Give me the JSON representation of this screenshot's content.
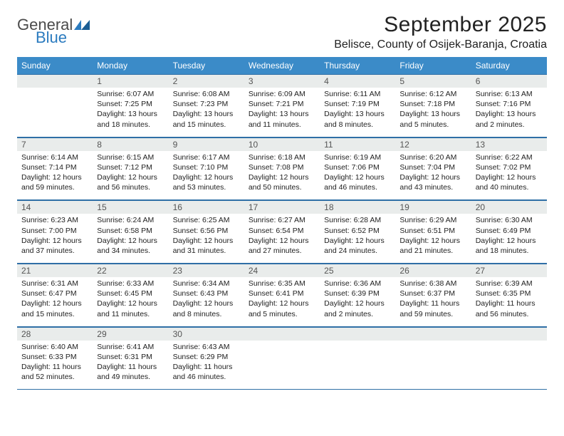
{
  "logo": {
    "word1": "General",
    "word2": "Blue"
  },
  "title": "September 2025",
  "location": "Belisce, County of Osijek-Baranja, Croatia",
  "colors": {
    "header_bg": "#3b8bc8",
    "header_text": "#ffffff",
    "daynum_bg": "#e9eceb",
    "rule": "#2f6fa6",
    "logo_gray": "#4a4a4a",
    "logo_blue": "#2b7bbf"
  },
  "dow": [
    "Sunday",
    "Monday",
    "Tuesday",
    "Wednesday",
    "Thursday",
    "Friday",
    "Saturday"
  ],
  "weeks": [
    {
      "nums": [
        "",
        "1",
        "2",
        "3",
        "4",
        "5",
        "6"
      ],
      "cells": [
        {
          "sunrise": "",
          "sunset": "",
          "daylight": ""
        },
        {
          "sunrise": "Sunrise: 6:07 AM",
          "sunset": "Sunset: 7:25 PM",
          "daylight": "Daylight: 13 hours and 18 minutes."
        },
        {
          "sunrise": "Sunrise: 6:08 AM",
          "sunset": "Sunset: 7:23 PM",
          "daylight": "Daylight: 13 hours and 15 minutes."
        },
        {
          "sunrise": "Sunrise: 6:09 AM",
          "sunset": "Sunset: 7:21 PM",
          "daylight": "Daylight: 13 hours and 11 minutes."
        },
        {
          "sunrise": "Sunrise: 6:11 AM",
          "sunset": "Sunset: 7:19 PM",
          "daylight": "Daylight: 13 hours and 8 minutes."
        },
        {
          "sunrise": "Sunrise: 6:12 AM",
          "sunset": "Sunset: 7:18 PM",
          "daylight": "Daylight: 13 hours and 5 minutes."
        },
        {
          "sunrise": "Sunrise: 6:13 AM",
          "sunset": "Sunset: 7:16 PM",
          "daylight": "Daylight: 13 hours and 2 minutes."
        }
      ]
    },
    {
      "nums": [
        "7",
        "8",
        "9",
        "10",
        "11",
        "12",
        "13"
      ],
      "cells": [
        {
          "sunrise": "Sunrise: 6:14 AM",
          "sunset": "Sunset: 7:14 PM",
          "daylight": "Daylight: 12 hours and 59 minutes."
        },
        {
          "sunrise": "Sunrise: 6:15 AM",
          "sunset": "Sunset: 7:12 PM",
          "daylight": "Daylight: 12 hours and 56 minutes."
        },
        {
          "sunrise": "Sunrise: 6:17 AM",
          "sunset": "Sunset: 7:10 PM",
          "daylight": "Daylight: 12 hours and 53 minutes."
        },
        {
          "sunrise": "Sunrise: 6:18 AM",
          "sunset": "Sunset: 7:08 PM",
          "daylight": "Daylight: 12 hours and 50 minutes."
        },
        {
          "sunrise": "Sunrise: 6:19 AM",
          "sunset": "Sunset: 7:06 PM",
          "daylight": "Daylight: 12 hours and 46 minutes."
        },
        {
          "sunrise": "Sunrise: 6:20 AM",
          "sunset": "Sunset: 7:04 PM",
          "daylight": "Daylight: 12 hours and 43 minutes."
        },
        {
          "sunrise": "Sunrise: 6:22 AM",
          "sunset": "Sunset: 7:02 PM",
          "daylight": "Daylight: 12 hours and 40 minutes."
        }
      ]
    },
    {
      "nums": [
        "14",
        "15",
        "16",
        "17",
        "18",
        "19",
        "20"
      ],
      "cells": [
        {
          "sunrise": "Sunrise: 6:23 AM",
          "sunset": "Sunset: 7:00 PM",
          "daylight": "Daylight: 12 hours and 37 minutes."
        },
        {
          "sunrise": "Sunrise: 6:24 AM",
          "sunset": "Sunset: 6:58 PM",
          "daylight": "Daylight: 12 hours and 34 minutes."
        },
        {
          "sunrise": "Sunrise: 6:25 AM",
          "sunset": "Sunset: 6:56 PM",
          "daylight": "Daylight: 12 hours and 31 minutes."
        },
        {
          "sunrise": "Sunrise: 6:27 AM",
          "sunset": "Sunset: 6:54 PM",
          "daylight": "Daylight: 12 hours and 27 minutes."
        },
        {
          "sunrise": "Sunrise: 6:28 AM",
          "sunset": "Sunset: 6:52 PM",
          "daylight": "Daylight: 12 hours and 24 minutes."
        },
        {
          "sunrise": "Sunrise: 6:29 AM",
          "sunset": "Sunset: 6:51 PM",
          "daylight": "Daylight: 12 hours and 21 minutes."
        },
        {
          "sunrise": "Sunrise: 6:30 AM",
          "sunset": "Sunset: 6:49 PM",
          "daylight": "Daylight: 12 hours and 18 minutes."
        }
      ]
    },
    {
      "nums": [
        "21",
        "22",
        "23",
        "24",
        "25",
        "26",
        "27"
      ],
      "cells": [
        {
          "sunrise": "Sunrise: 6:31 AM",
          "sunset": "Sunset: 6:47 PM",
          "daylight": "Daylight: 12 hours and 15 minutes."
        },
        {
          "sunrise": "Sunrise: 6:33 AM",
          "sunset": "Sunset: 6:45 PM",
          "daylight": "Daylight: 12 hours and 11 minutes."
        },
        {
          "sunrise": "Sunrise: 6:34 AM",
          "sunset": "Sunset: 6:43 PM",
          "daylight": "Daylight: 12 hours and 8 minutes."
        },
        {
          "sunrise": "Sunrise: 6:35 AM",
          "sunset": "Sunset: 6:41 PM",
          "daylight": "Daylight: 12 hours and 5 minutes."
        },
        {
          "sunrise": "Sunrise: 6:36 AM",
          "sunset": "Sunset: 6:39 PM",
          "daylight": "Daylight: 12 hours and 2 minutes."
        },
        {
          "sunrise": "Sunrise: 6:38 AM",
          "sunset": "Sunset: 6:37 PM",
          "daylight": "Daylight: 11 hours and 59 minutes."
        },
        {
          "sunrise": "Sunrise: 6:39 AM",
          "sunset": "Sunset: 6:35 PM",
          "daylight": "Daylight: 11 hours and 56 minutes."
        }
      ]
    },
    {
      "nums": [
        "28",
        "29",
        "30",
        "",
        "",
        "",
        ""
      ],
      "cells": [
        {
          "sunrise": "Sunrise: 6:40 AM",
          "sunset": "Sunset: 6:33 PM",
          "daylight": "Daylight: 11 hours and 52 minutes."
        },
        {
          "sunrise": "Sunrise: 6:41 AM",
          "sunset": "Sunset: 6:31 PM",
          "daylight": "Daylight: 11 hours and 49 minutes."
        },
        {
          "sunrise": "Sunrise: 6:43 AM",
          "sunset": "Sunset: 6:29 PM",
          "daylight": "Daylight: 11 hours and 46 minutes."
        },
        {
          "sunrise": "",
          "sunset": "",
          "daylight": ""
        },
        {
          "sunrise": "",
          "sunset": "",
          "daylight": ""
        },
        {
          "sunrise": "",
          "sunset": "",
          "daylight": ""
        },
        {
          "sunrise": "",
          "sunset": "",
          "daylight": ""
        }
      ]
    }
  ]
}
